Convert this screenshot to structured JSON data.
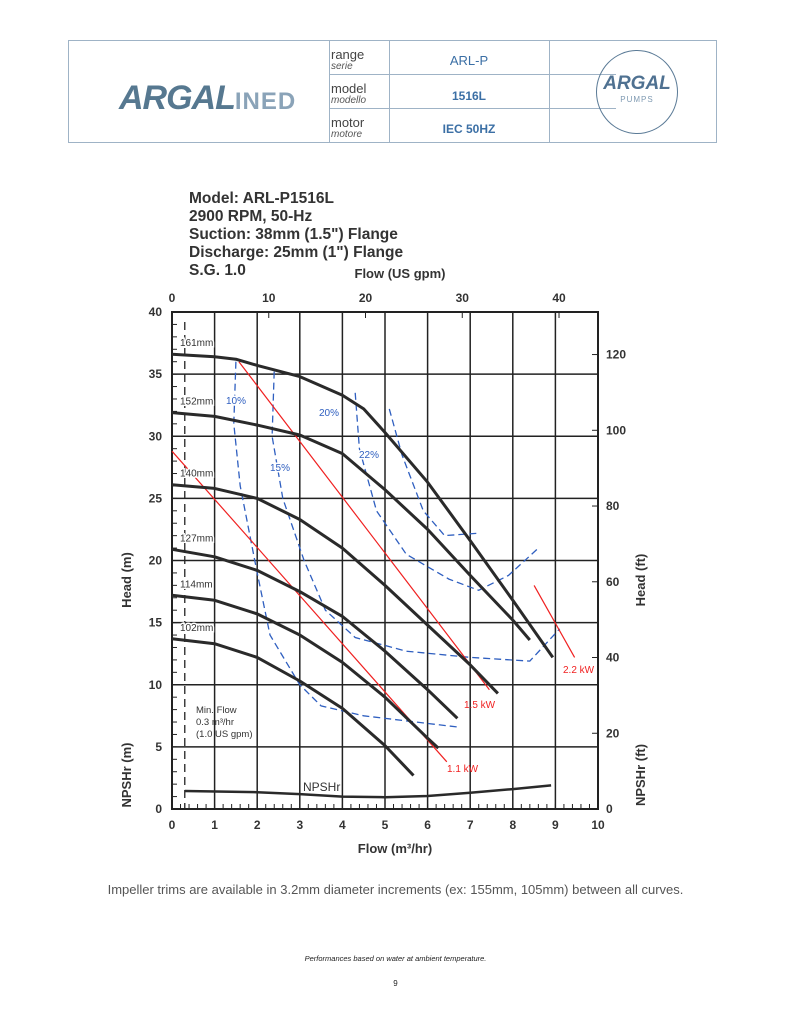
{
  "header": {
    "logo_text": "ARGAL INED",
    "seal_text": "ARGAL ITALY PUMPS",
    "rows": [
      {
        "label": "range",
        "label_it": "serie",
        "value": "ARL-P"
      },
      {
        "label": "model",
        "label_it": "modello",
        "value": "1516L"
      },
      {
        "label": "motor",
        "label_it": "motore",
        "value": "IEC 50HZ"
      }
    ]
  },
  "title_lines": [
    "Model: ARL-P1516L",
    "2900 RPM, 50-Hz",
    "Suction: 38mm (1.5\") Flange",
    "Discharge: 25mm (1\") Flange",
    "S.G. 1.0"
  ],
  "chart_data": {
    "type": "line",
    "xlabel": "Flow (m³/hr)",
    "x2label": "Flow (US gpm)",
    "ylabel": "Head (m)",
    "ylabel_npsh": "NPSHr (m)",
    "y2label": "Head (ft)",
    "y2label_npsh": "NPSHr (ft)",
    "xlim": [
      0,
      10
    ],
    "ylim": [
      0,
      40
    ],
    "xticks": [
      0,
      1,
      2,
      3,
      4,
      5,
      6,
      7,
      8,
      9,
      10
    ],
    "yticks": [
      0,
      5,
      10,
      15,
      20,
      25,
      30,
      35,
      40
    ],
    "x2ticks": [
      0,
      10,
      20,
      30,
      40
    ],
    "y2ticks": [
      0,
      20,
      40,
      60,
      80,
      100,
      120
    ],
    "grid": true,
    "min_flow": {
      "x": 0.3,
      "text": [
        "Min. Flow",
        "0.3 m³/hr",
        "(1.0 US gpm)"
      ]
    },
    "head_curves": [
      {
        "name": "161mm",
        "x": [
          0,
          1,
          1.5,
          2,
          3,
          4,
          4.5,
          5,
          6,
          7,
          8,
          8.94
        ],
        "y": [
          36.6,
          36.4,
          36.2,
          35.7,
          34.8,
          33.3,
          32.2,
          30.3,
          26.3,
          21.6,
          16.8,
          12.2
        ]
      },
      {
        "name": "152mm",
        "x": [
          0,
          1,
          2,
          3,
          4,
          5,
          6,
          7,
          8,
          8.4
        ],
        "y": [
          31.9,
          31.6,
          30.9,
          30.1,
          28.6,
          25.7,
          22.5,
          18.8,
          15.2,
          13.6
        ]
      },
      {
        "name": "140mm",
        "x": [
          0,
          1,
          2,
          3,
          4,
          5,
          6,
          7,
          7.65
        ],
        "y": [
          26.1,
          25.8,
          25.0,
          23.3,
          21.0,
          18.0,
          14.8,
          11.6,
          9.3
        ]
      },
      {
        "name": "127mm",
        "x": [
          0,
          1,
          2,
          3,
          4,
          5,
          6,
          6.7
        ],
        "y": [
          20.9,
          20.3,
          19.2,
          17.5,
          15.5,
          12.7,
          9.6,
          7.3
        ]
      },
      {
        "name": "114mm",
        "x": [
          0,
          1,
          2,
          3,
          4,
          5,
          6,
          6.25
        ],
        "y": [
          17.2,
          16.8,
          15.7,
          14.0,
          11.8,
          9.0,
          5.7,
          4.9
        ]
      },
      {
        "name": "102mm",
        "x": [
          0,
          1,
          2,
          3,
          4,
          5,
          5.67
        ],
        "y": [
          13.7,
          13.3,
          12.2,
          10.3,
          8.1,
          5.1,
          2.7
        ]
      }
    ],
    "npshr": {
      "name": "NPSHr",
      "x": [
        0.3,
        2,
        3,
        4,
        5,
        6,
        7,
        8,
        8.9
      ],
      "y": [
        1.45,
        1.35,
        1.2,
        1.0,
        0.95,
        1.05,
        1.3,
        1.6,
        1.9
      ]
    },
    "power_lines": [
      {
        "name": "1.1 kW",
        "x": [
          0,
          6.45
        ],
        "y": [
          28.8,
          3.8
        ]
      },
      {
        "name": "1.5 kW",
        "x": [
          1.57,
          7.45
        ],
        "y": [
          36.0,
          9.6
        ]
      },
      {
        "name": "2.2 kW",
        "x": [
          8.5,
          9.45
        ],
        "y": [
          18.0,
          12.2
        ]
      }
    ],
    "efficiency_curves": [
      {
        "name": "10%",
        "x": [
          1.5,
          1.45,
          1.6,
          2.0,
          2.3,
          3.0,
          3.5,
          4.5,
          6.7
        ],
        "y": [
          36,
          31,
          26,
          19,
          14,
          10,
          8.3,
          7.5,
          6.6
        ]
      },
      {
        "name": "15%",
        "x": [
          2.4,
          2.35,
          2.6,
          3.1,
          3.6,
          4.3,
          5.5,
          7,
          8.4,
          9.1
        ],
        "y": [
          35.2,
          30,
          25,
          20,
          16,
          13.8,
          12.7,
          12.2,
          11.9,
          14.5
        ]
      },
      {
        "name": "20%",
        "x": [
          4.3,
          4.4,
          4.8,
          5.5,
          6.5,
          7.2,
          7.9,
          8.6
        ],
        "y": [
          33.5,
          29,
          24,
          20.5,
          18.5,
          17.6,
          18.8,
          21
        ]
      },
      {
        "name": "22%",
        "x": [
          5.1,
          5.4,
          5.9,
          6.4,
          7.2
        ],
        "y": [
          32.2,
          28.5,
          24,
          22,
          22.2
        ]
      }
    ]
  },
  "footer": {
    "note": "Impeller trims are available in 3.2mm diameter increments (ex: 155mm, 105mm) between all curves.",
    "performance": "Performances based on water at ambient temperature.",
    "page": "9"
  }
}
